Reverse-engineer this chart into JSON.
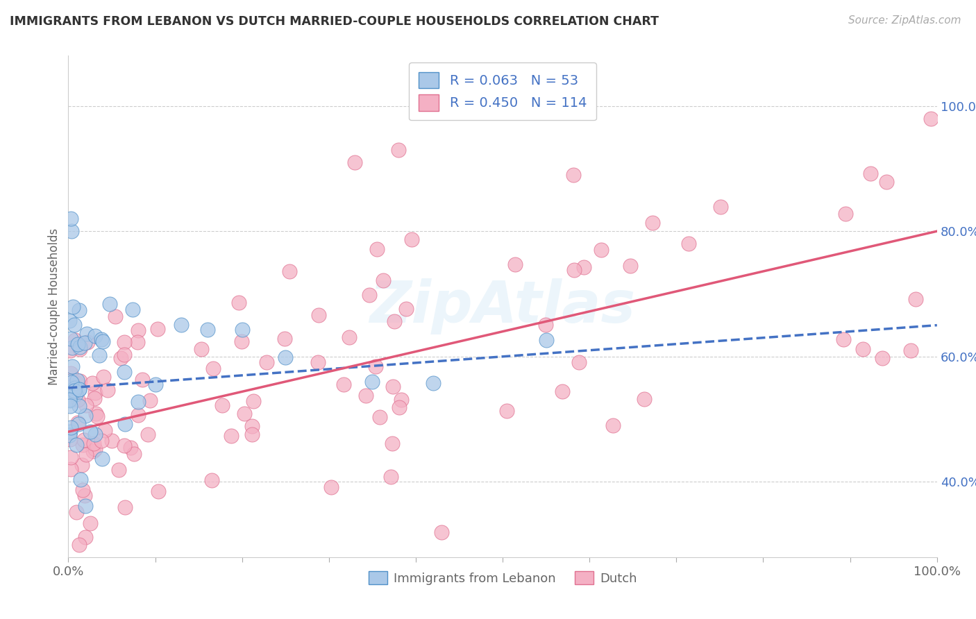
{
  "title": "IMMIGRANTS FROM LEBANON VS DUTCH MARRIED-COUPLE HOUSEHOLDS CORRELATION CHART",
  "source": "Source: ZipAtlas.com",
  "ylabel": "Married-couple Households",
  "legend_label1": "Immigrants from Lebanon",
  "legend_label2": "Dutch",
  "series1_R": 0.063,
  "series1_N": 53,
  "series1_color": "#aac8e8",
  "series1_edge_color": "#5090c8",
  "series1_line_color": "#4472c4",
  "series2_R": 0.45,
  "series2_N": 114,
  "series2_color": "#f4b0c4",
  "series2_edge_color": "#e07090",
  "series2_line_color": "#e05878",
  "xlim": [
    0,
    100
  ],
  "ylim": [
    28,
    108
  ],
  "yticks": [
    40,
    60,
    80,
    100
  ],
  "watermark": "ZipAtlas",
  "background_color": "#ffffff",
  "grid_color": "#c8c8c8",
  "title_fontsize": 12.5,
  "source_fontsize": 11,
  "tick_fontsize": 13,
  "ylabel_fontsize": 12
}
